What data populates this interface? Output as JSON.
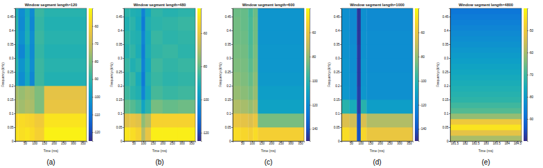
{
  "chart_data": [
    {
      "type": "heatmap",
      "title": "Window segment length=120",
      "caption": "(a)",
      "xlabel": "Time (ms)",
      "ylabel": "Frequency (kHz)",
      "xlim": [
        0,
        370
      ],
      "xticks": [
        50,
        100,
        150,
        200,
        250,
        300,
        350
      ],
      "ylim": [
        0,
        0.48
      ],
      "yticks": [
        0,
        0.05,
        0.1,
        0.15,
        0.2,
        0.25,
        0.3,
        0.35,
        0.4,
        0.45
      ],
      "x_bins": [
        0,
        15,
        50,
        75,
        100,
        150,
        370
      ],
      "y_bins": [
        0,
        0.05,
        0.1,
        0.15,
        0.2,
        0.25,
        0.3,
        0.35,
        0.4,
        0.45,
        0.48
      ],
      "values": [
        [
          -55,
          -56,
          -55,
          -57,
          -60,
          -52
        ],
        [
          -58,
          -57,
          -58,
          -59,
          -62,
          -55
        ],
        [
          -74,
          -76,
          -74,
          -75,
          -80,
          -64
        ],
        [
          -75,
          -77,
          -75,
          -76,
          -80,
          -65
        ],
        [
          -92,
          -104,
          -95,
          -106,
          -88,
          -92
        ],
        [
          -90,
          -102,
          -94,
          -104,
          -88,
          -91
        ],
        [
          -92,
          -106,
          -95,
          -105,
          -89,
          -92
        ],
        [
          -91,
          -103,
          -93,
          -104,
          -88,
          -91
        ],
        [
          -90,
          -105,
          -94,
          -106,
          -89,
          -92
        ],
        [
          -92,
          -104,
          -95,
          -105,
          -88,
          -91
        ]
      ],
      "colorbar": {
        "range": [
          -125,
          -50
        ],
        "ticks": [
          -120,
          -110,
          -100,
          -90,
          -80,
          -70,
          -60
        ]
      }
    },
    {
      "type": "heatmap",
      "title": "Window segment length=480",
      "caption": "(b)",
      "xlabel": "Time (ms)",
      "ylabel": "Frequency (kHz)",
      "xlim": [
        0,
        370
      ],
      "xticks": [
        50,
        100,
        150,
        200,
        250,
        300,
        350
      ],
      "ylim": [
        0,
        0.48
      ],
      "yticks": [
        0,
        0.05,
        0.1,
        0.15,
        0.2,
        0.25,
        0.3,
        0.35,
        0.4,
        0.45
      ],
      "x_bins": [
        0,
        30,
        60,
        90,
        110,
        140,
        200,
        280,
        370
      ],
      "y_bins": [
        0,
        0.05,
        0.1,
        0.15,
        0.2,
        0.25,
        0.3,
        0.35,
        0.4,
        0.45,
        0.48
      ],
      "values": [
        [
          -50,
          -52,
          -55,
          -70,
          -60,
          -48,
          -48,
          -48
        ],
        [
          -62,
          -60,
          -62,
          -75,
          -70,
          -55,
          -55,
          -55
        ],
        [
          -80,
          -82,
          -85,
          -95,
          -88,
          -78,
          -80,
          -79
        ],
        [
          -85,
          -88,
          -90,
          -105,
          -92,
          -84,
          -86,
          -85
        ],
        [
          -88,
          -86,
          -92,
          -108,
          -90,
          -86,
          -88,
          -87
        ],
        [
          -86,
          -90,
          -88,
          -106,
          -93,
          -85,
          -87,
          -86
        ],
        [
          -89,
          -87,
          -91,
          -107,
          -91,
          -87,
          -86,
          -88
        ],
        [
          -87,
          -89,
          -90,
          -105,
          -92,
          -86,
          -88,
          -87
        ],
        [
          -90,
          -88,
          -92,
          -108,
          -90,
          -88,
          -87,
          -86
        ],
        [
          -88,
          -90,
          -91,
          -106,
          -93,
          -87,
          -89,
          -88
        ]
      ],
      "colorbar": {
        "range": [
          -125,
          -45
        ],
        "ticks": [
          -120,
          -100,
          -80,
          -60
        ]
      }
    },
    {
      "type": "heatmap",
      "title": "Window segment length=600",
      "caption": "(c)",
      "xlabel": "Time (ms)",
      "ylabel": "Frequency (kHz)",
      "xlim": [
        0,
        370
      ],
      "xticks": [
        50,
        100,
        150,
        200,
        250,
        300,
        350
      ],
      "ylim": [
        0,
        0.48
      ],
      "yticks": [
        0,
        0.05,
        0.1,
        0.15,
        0.2,
        0.25,
        0.3,
        0.35,
        0.4,
        0.45
      ],
      "x_bins": [
        0,
        40,
        80,
        105,
        130,
        370
      ],
      "y_bins": [
        0,
        0.05,
        0.1,
        0.15,
        0.2,
        0.25,
        0.3,
        0.35,
        0.4,
        0.45,
        0.48
      ],
      "values": [
        [
          -50,
          -52,
          -55,
          -50,
          -55
        ],
        [
          -60,
          -62,
          -65,
          -60,
          -85
        ],
        [
          -75,
          -77,
          -80,
          -76,
          -110
        ],
        [
          -80,
          -82,
          -85,
          -80,
          -112
        ],
        [
          -82,
          -84,
          -88,
          -82,
          -114
        ],
        [
          -84,
          -85,
          -90,
          -84,
          -115
        ],
        [
          -85,
          -86,
          -92,
          -85,
          -115
        ],
        [
          -86,
          -87,
          -93,
          -86,
          -116
        ],
        [
          -86,
          -88,
          -93,
          -86,
          -116
        ],
        [
          -87,
          -88,
          -94,
          -87,
          -116
        ]
      ],
      "colorbar": {
        "range": [
          -150,
          -40
        ],
        "ticks": [
          -140,
          -120,
          -100,
          -80,
          -60
        ]
      }
    },
    {
      "type": "heatmap",
      "title": "Window segment length=1000",
      "caption": "(d)",
      "xlabel": "Time (ms)",
      "ylabel": "Frequency (kHz)",
      "xlim": [
        0,
        370
      ],
      "xticks": [
        50,
        100,
        150,
        200,
        250,
        300,
        350
      ],
      "ylim": [
        0,
        0.48
      ],
      "yticks": [
        0,
        0.05,
        0.1,
        0.15,
        0.2,
        0.25,
        0.3,
        0.35,
        0.4,
        0.45
      ],
      "x_bins": [
        0,
        40,
        80,
        100,
        130,
        370
      ],
      "y_bins": [
        0,
        0.05,
        0.1,
        0.15,
        0.2,
        0.25,
        0.3,
        0.35,
        0.4,
        0.45,
        0.48
      ],
      "values": [
        [
          -50,
          -55,
          -140,
          -52,
          -60
        ],
        [
          -65,
          -68,
          -140,
          -66,
          -75
        ],
        [
          -100,
          -105,
          -145,
          -100,
          -112
        ],
        [
          -115,
          -118,
          -145,
          -115,
          -118
        ],
        [
          -116,
          -118,
          -146,
          -116,
          -118
        ],
        [
          -116,
          -119,
          -146,
          -116,
          -119
        ],
        [
          -117,
          -119,
          -146,
          -117,
          -119
        ],
        [
          -117,
          -120,
          -147,
          -117,
          -119
        ],
        [
          -118,
          -120,
          -147,
          -118,
          -120
        ],
        [
          -118,
          -120,
          -147,
          -118,
          -120
        ]
      ],
      "colorbar": {
        "range": [
          -150,
          -40
        ],
        "ticks": [
          -140,
          -120,
          -100,
          -80,
          -60
        ]
      }
    },
    {
      "type": "heatmap",
      "title": "Window segment length=4800",
      "caption": "(e)",
      "xlabel": "Time (ms)",
      "ylabel": "Frequency (kHz)",
      "xlim": [
        181.3,
        184.7
      ],
      "xticks": [
        181.5,
        182,
        182.5,
        183,
        183.5,
        184,
        184.5
      ],
      "ylim": [
        0,
        0.48
      ],
      "yticks": [
        0,
        0.05,
        0.1,
        0.15,
        0.2,
        0.25,
        0.3,
        0.35,
        0.4,
        0.45
      ],
      "x_bins": [
        181.3,
        184.7
      ],
      "y_bins": [
        0,
        0.02,
        0.04,
        0.06,
        0.08,
        0.1,
        0.12,
        0.14,
        0.16,
        0.18,
        0.2,
        0.22,
        0.24,
        0.26,
        0.28,
        0.3,
        0.32,
        0.34,
        0.36,
        0.38,
        0.4,
        0.42,
        0.44,
        0.46,
        0.48
      ],
      "values": [
        [
          -60
        ],
        [
          -52
        ],
        [
          -44
        ],
        [
          -50
        ],
        [
          -62
        ],
        [
          -68
        ],
        [
          -70
        ],
        [
          -72
        ],
        [
          -73
        ],
        [
          -74
        ],
        [
          -75
        ],
        [
          -76
        ],
        [
          -77
        ],
        [
          -78
        ],
        [
          -79
        ],
        [
          -80
        ],
        [
          -81
        ],
        [
          -82
        ],
        [
          -83
        ],
        [
          -84
        ],
        [
          -85
        ],
        [
          -86
        ],
        [
          -87
        ],
        [
          -88
        ]
      ],
      "colorbar": {
        "range": [
          -100,
          -40
        ],
        "ticks": [
          -90,
          -80,
          -70,
          -60,
          -50
        ]
      }
    }
  ]
}
